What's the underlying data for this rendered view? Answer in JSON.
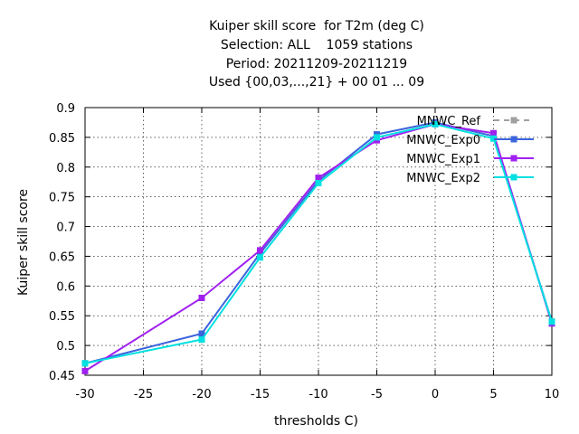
{
  "chart_data": {
    "type": "line",
    "title_lines": [
      "Kuiper skill score  for T2m (deg C)",
      "Selection: ALL    1059 stations",
      "Period: 20211209-20211219",
      "Used {00,03,...,21} + 00 01 ... 09"
    ],
    "xlabel": "thresholds C)",
    "ylabel": "Kuiper skill score",
    "xlim": [
      -30,
      10
    ],
    "ylim": [
      0.45,
      0.9
    ],
    "xticks": [
      -30,
      -25,
      -20,
      -15,
      -10,
      -5,
      0,
      5,
      10
    ],
    "yticks": [
      0.45,
      0.5,
      0.55,
      0.6,
      0.65,
      0.7,
      0.75,
      0.8,
      0.85,
      0.9
    ],
    "xtick_labels": [
      "-30",
      "-25",
      "-20",
      "-15",
      "-10",
      "-5",
      "0",
      "5",
      "10"
    ],
    "ytick_labels": [
      "0.45",
      "0.5",
      "0.55",
      "0.6",
      "0.65",
      "0.7",
      "0.75",
      "0.8",
      "0.85",
      "0.9"
    ],
    "grid": true,
    "legend_position": "top-right",
    "x": [
      -30,
      -20,
      -15,
      -10,
      -5,
      0,
      5,
      10
    ],
    "series": [
      {
        "name": "MNWC_Ref",
        "color": "#a0a0a0",
        "dashed": true,
        "values": [
          null,
          null,
          null,
          null,
          null,
          0.875,
          null,
          null
        ]
      },
      {
        "name": "MNWC_Exp0",
        "color": "#3c64dc",
        "dashed": false,
        "values": [
          0.47,
          0.52,
          0.655,
          0.777,
          0.855,
          0.875,
          0.852,
          0.54
        ]
      },
      {
        "name": "MNWC_Exp1",
        "color": "#a020f0",
        "dashed": false,
        "values": [
          0.457,
          0.58,
          0.66,
          0.782,
          0.845,
          0.872,
          0.857,
          0.537
        ]
      },
      {
        "name": "MNWC_Exp2",
        "color": "#00e0e0",
        "dashed": false,
        "values": [
          0.47,
          0.51,
          0.648,
          0.773,
          0.85,
          0.872,
          0.848,
          0.54
        ]
      }
    ]
  }
}
